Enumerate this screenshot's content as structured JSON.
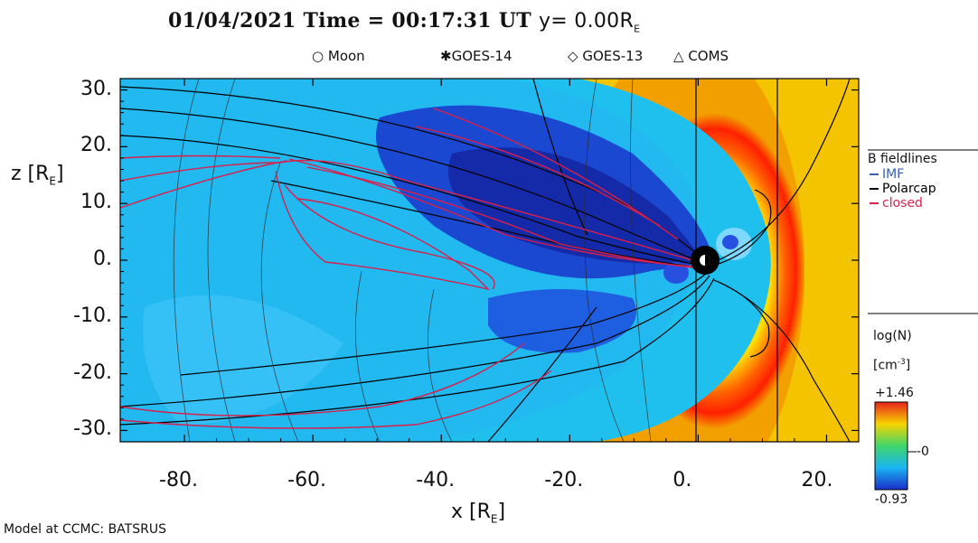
{
  "title": {
    "date": "01/04/2021",
    "time_label": "Time = 00:17:31 UT",
    "position": "y= 0.00R",
    "position_sub": "E"
  },
  "satellites": [
    {
      "marker": "○",
      "name": "Moon"
    },
    {
      "marker": "✱",
      "name": "GOES-14"
    },
    {
      "marker": "◇",
      "name": "GOES-13"
    },
    {
      "marker": "△",
      "name": "COMS"
    }
  ],
  "chart_data": {
    "type": "heatmap",
    "quantity": "log(N)",
    "units": "[cm-3]",
    "xlabel": "x [RE]",
    "ylabel": "z [RE]",
    "xlim": [
      -90,
      25
    ],
    "ylim": [
      -32,
      32
    ],
    "x_ticks": [
      "-80.",
      "-60.",
      "-40.",
      "-20.",
      "0.",
      "20."
    ],
    "x_tick_values": [
      -80,
      -60,
      -40,
      -20,
      0,
      20
    ],
    "y_ticks": [
      "30.",
      "20.",
      "10.",
      "0.",
      "-10.",
      "-20.",
      "-30."
    ],
    "y_tick_values": [
      30,
      20,
      10,
      0,
      -10,
      -20,
      -30
    ],
    "colorbar": {
      "max": 1.46,
      "max_label": "+1.46",
      "mid_label": "-0",
      "min": -0.93,
      "min_label": "-0.93"
    },
    "fieldline_legend": {
      "title": "B fieldlines",
      "items": [
        {
          "name": "IMF",
          "color": "#3a5fb0"
        },
        {
          "name": "Polarcap",
          "color": "#000000"
        },
        {
          "name": "closed",
          "color": "#d8204a"
        }
      ]
    }
  },
  "credit": "Model at CCMC: BATSRUS"
}
